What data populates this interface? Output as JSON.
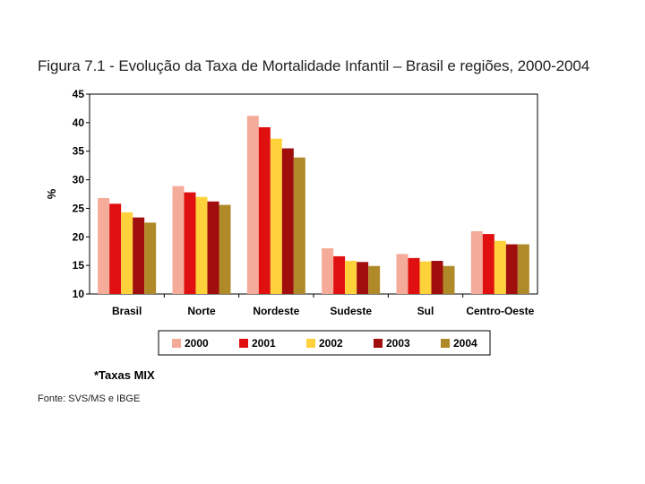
{
  "title": "Figura 7.1 - Evolução da Taxa de Mortalidade Infantil – Brasil e regiões, 2000-2004",
  "note": "*Taxas MIX",
  "source": "Fonte: SVS/MS e IBGE",
  "colors": {
    "2000": "#f4ab9a",
    "2001": "#e01010",
    "2002": "#ffd23c",
    "2003": "#a00e0e",
    "2004": "#b08a28"
  },
  "chart_data": {
    "type": "bar",
    "ylabel": "%",
    "xlabel": "",
    "ylim": [
      10,
      45
    ],
    "yticks": [
      10,
      15,
      20,
      25,
      30,
      35,
      40,
      45
    ],
    "grid": false,
    "legend_position": "bottom",
    "categories": [
      "Brasil",
      "Norte",
      "Nordeste",
      "Sudeste",
      "Sul",
      "Centro-Oeste"
    ],
    "series": [
      {
        "name": "2000",
        "values": [
          26.8,
          28.9,
          41.2,
          18.0,
          17.0,
          21.0
        ]
      },
      {
        "name": "2001",
        "values": [
          25.8,
          27.8,
          39.2,
          16.6,
          16.3,
          20.5
        ]
      },
      {
        "name": "2002",
        "values": [
          24.3,
          27.0,
          37.2,
          15.8,
          15.7,
          19.3
        ]
      },
      {
        "name": "2003",
        "values": [
          23.4,
          26.2,
          35.5,
          15.6,
          15.8,
          18.7
        ]
      },
      {
        "name": "2004",
        "values": [
          22.5,
          25.6,
          33.9,
          14.9,
          14.9,
          18.7
        ]
      }
    ]
  }
}
